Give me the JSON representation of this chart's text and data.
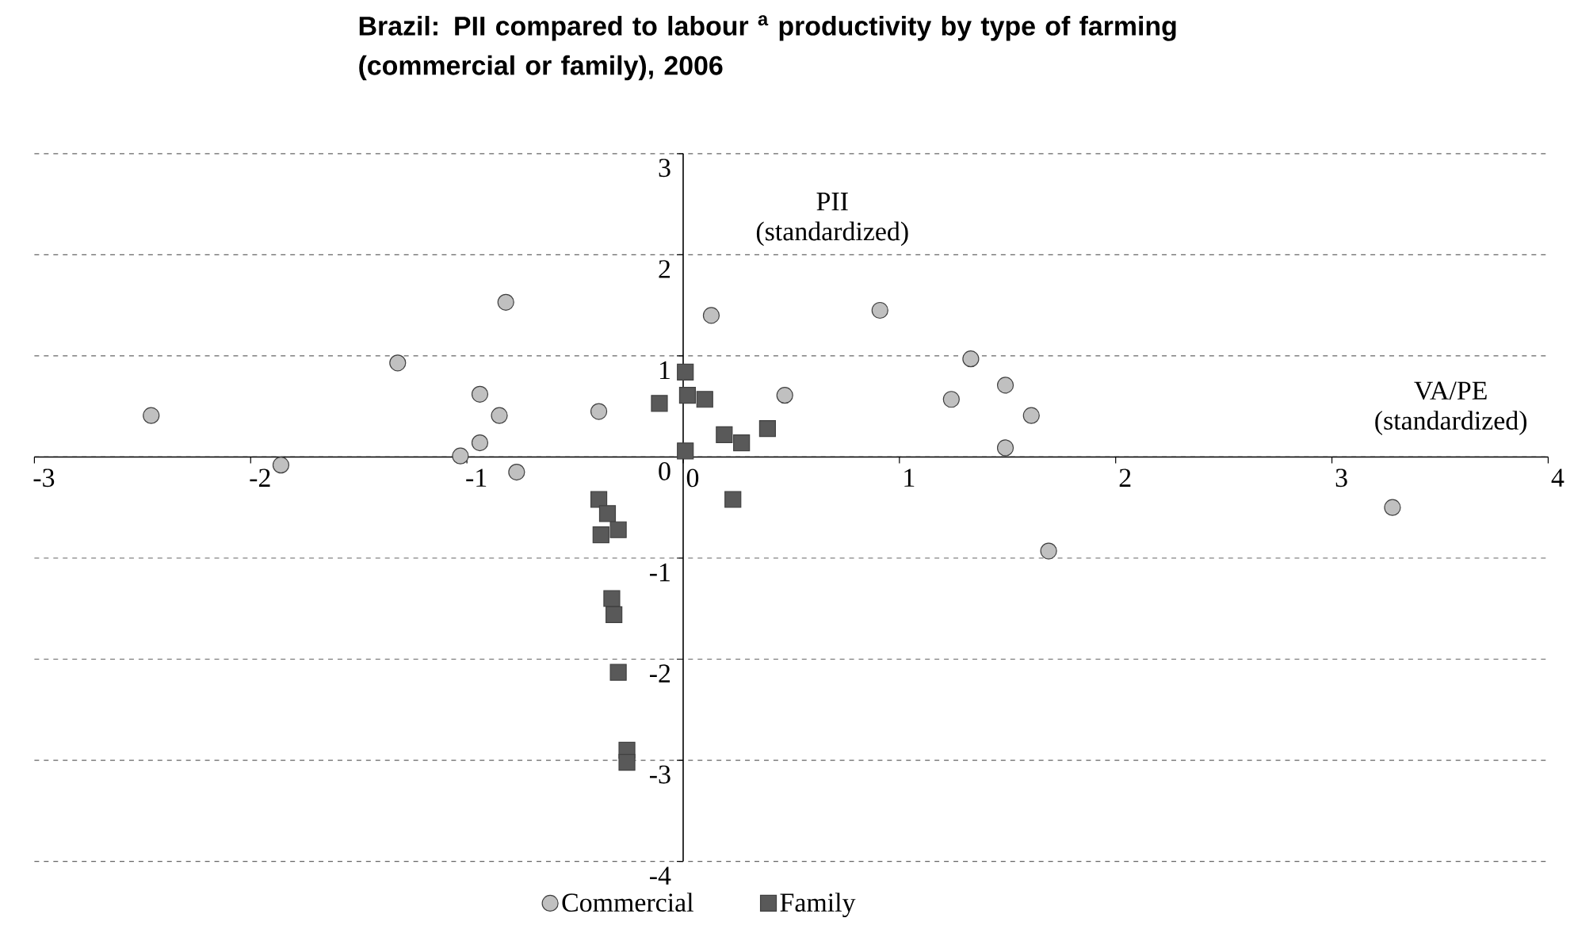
{
  "chart_data": {
    "type": "scatter",
    "title": "Brazil: PII compared to labour $^{a}$ productivity by type of farming (commercial or family), 2006",
    "xlabel": "VA/PE (standardized)",
    "ylabel": "PII (standardized)",
    "xlim": [
      -3,
      4
    ],
    "ylim": [
      -4,
      3
    ],
    "xticks": [
      -3,
      -2,
      -1,
      0,
      1,
      2,
      3,
      4
    ],
    "yticks": [
      -4,
      -3,
      -2,
      -1,
      0,
      1,
      2,
      3
    ],
    "grid": "y",
    "legend": "bottom",
    "series": [
      {
        "name": "Commercial",
        "color": "#c0c0c0",
        "marker": "circle",
        "x": [
          -2.46,
          -1.86,
          -1.32,
          -0.82,
          -0.94,
          -0.85,
          -0.94,
          -1.03,
          -0.77,
          -0.39,
          0.13,
          0.91,
          0.47,
          1.33,
          1.24,
          1.49,
          1.61,
          1.49,
          3.28,
          1.69
        ],
        "values": [
          0.41,
          -0.08,
          0.93,
          1.53,
          0.62,
          0.41,
          0.14,
          0.01,
          -0.15,
          0.45,
          1.4,
          1.45,
          0.61,
          0.97,
          0.57,
          0.71,
          0.41,
          0.09,
          -0.5,
          -0.93
        ]
      },
      {
        "name": "Family",
        "color": "#595959",
        "marker": "square",
        "x": [
          0.01,
          0.02,
          0.1,
          -0.11,
          0.19,
          0.27,
          0.39,
          0.01,
          0.23,
          -0.39,
          -0.35,
          -0.3,
          -0.38,
          -0.33,
          -0.32,
          -0.3,
          -0.26,
          -0.26
        ],
        "values": [
          0.84,
          0.61,
          0.57,
          0.53,
          0.22,
          0.14,
          0.28,
          0.06,
          -0.42,
          -0.42,
          -0.56,
          -0.72,
          -0.77,
          -1.4,
          -1.56,
          -2.13,
          -2.9,
          -3.02
        ]
      }
    ]
  }
}
